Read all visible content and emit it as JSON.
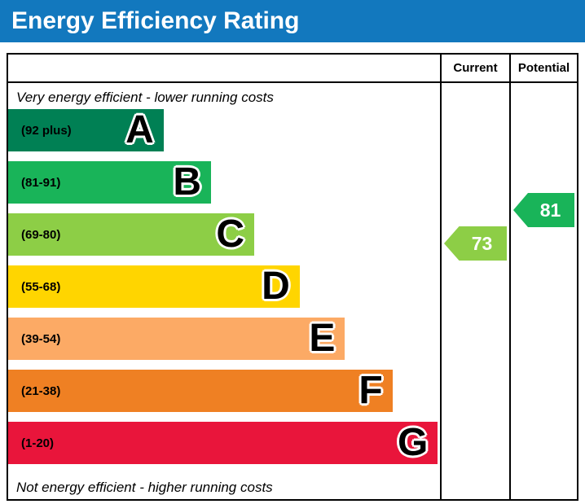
{
  "title": "Energy Efficiency Rating",
  "columns": {
    "current": "Current",
    "potential": "Potential"
  },
  "top_note": "Very energy efficient - lower running costs",
  "bottom_note": "Not energy efficient - higher running costs",
  "theme": {
    "title_bar_color": "#1278be",
    "border_color": "#000000"
  },
  "bands": [
    {
      "letter": "A",
      "range": "(92 plus)",
      "color": "#008054",
      "width_pct": 36
    },
    {
      "letter": "B",
      "range": "(81-91)",
      "color": "#19b459",
      "width_pct": 47
    },
    {
      "letter": "C",
      "range": "(69-80)",
      "color": "#8dce46",
      "width_pct": 57
    },
    {
      "letter": "D",
      "range": "(55-68)",
      "color": "#ffd500",
      "width_pct": 67.5
    },
    {
      "letter": "E",
      "range": "(39-54)",
      "color": "#fcaa65",
      "width_pct": 78
    },
    {
      "letter": "F",
      "range": "(21-38)",
      "color": "#ef8023",
      "width_pct": 89
    },
    {
      "letter": "G",
      "range": "(1-20)",
      "color": "#e9153b",
      "width_pct": 99.5
    }
  ],
  "current": {
    "value": "73",
    "color": "#8dce46",
    "band": "C"
  },
  "potential": {
    "value": "81",
    "color": "#19b459",
    "band": "B"
  },
  "chart_data": {
    "type": "bar",
    "title": "Energy Efficiency Rating",
    "categories": [
      "A (92 plus)",
      "B (81-91)",
      "C (69-80)",
      "D (55-68)",
      "E (39-54)",
      "F (21-38)",
      "G (1-20)"
    ],
    "values": [
      36,
      47,
      57,
      67.5,
      78,
      89,
      99.5
    ],
    "annotations": [
      {
        "name": "Current",
        "value": 73,
        "band": "C"
      },
      {
        "name": "Potential",
        "value": 81,
        "band": "B"
      }
    ],
    "legend_position": "none",
    "grid": false
  }
}
